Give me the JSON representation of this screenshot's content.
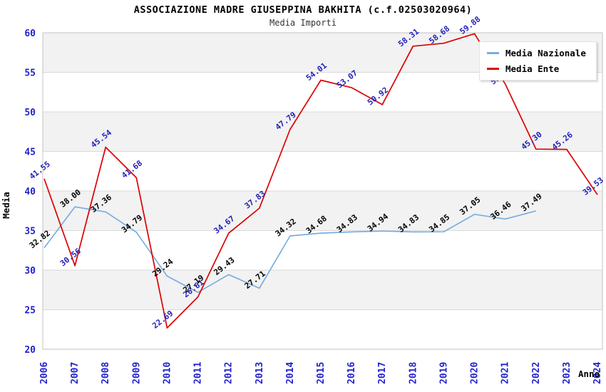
{
  "title": "ASSOCIAZIONE MADRE GIUSEPPINA BAKHITA (c.f.02503020964)",
  "subtitle": "Media Importi",
  "legend": {
    "items": [
      {
        "label": "Media Nazionale",
        "color": "#7aade0"
      },
      {
        "label": "Media Ente",
        "color": "#dd0000"
      }
    ]
  },
  "chart_data": {
    "type": "line",
    "title": "ASSOCIAZIONE MADRE GIUSEPPINA BAKHITA (c.f.02503020964)",
    "subtitle": "Media Importi",
    "xlabel": "Anno",
    "ylabel": "Media",
    "x": [
      2006,
      2007,
      2008,
      2009,
      2010,
      2011,
      2012,
      2013,
      2014,
      2015,
      2016,
      2017,
      2018,
      2019,
      2020,
      2021,
      2022,
      2023,
      2024
    ],
    "ylim": [
      20,
      60
    ],
    "ytick_step": 5,
    "grid": "horizontal-bands",
    "legend_position": "top-right",
    "series": [
      {
        "name": "Media Nazionale",
        "color": "#7aade0",
        "label_color": "#000000",
        "values": [
          32.82,
          38.0,
          37.36,
          34.79,
          29.24,
          27.19,
          29.43,
          27.71,
          34.32,
          34.68,
          34.83,
          34.94,
          34.83,
          34.85,
          37.05,
          36.46,
          37.49,
          null,
          null
        ]
      },
      {
        "name": "Media Ente",
        "color": "#dd0000",
        "label_color": "#2323b8",
        "values": [
          41.55,
          30.56,
          45.54,
          41.68,
          22.69,
          26.61,
          34.67,
          37.83,
          47.79,
          54.01,
          53.07,
          50.92,
          58.31,
          58.68,
          59.88,
          53.52,
          45.3,
          45.26,
          39.53
        ]
      }
    ],
    "style": {
      "tick_label_color": "#2222cc",
      "band_color": "#f2f2f2",
      "grid_line_color": "#d9d9d9",
      "plot_border_color": "#c3c3c3"
    }
  }
}
